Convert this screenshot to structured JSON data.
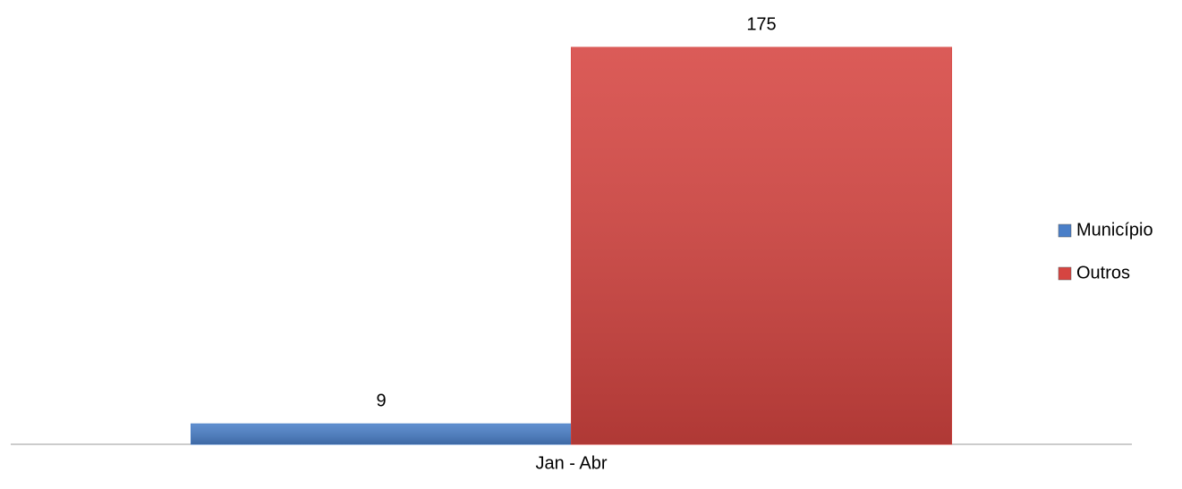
{
  "chart_data": {
    "type": "bar",
    "categories": [
      "Jan - Abr"
    ],
    "series": [
      {
        "name": "Município",
        "color": "#4a7fc8",
        "values": [
          9
        ]
      },
      {
        "name": "Outros",
        "color": "#d64541",
        "values": [
          175
        ]
      }
    ],
    "legend": "right"
  }
}
